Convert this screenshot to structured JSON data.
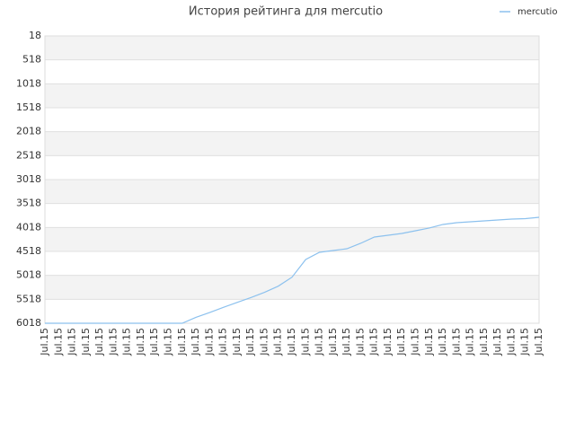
{
  "chart_data": {
    "type": "line",
    "title": "История рейтинга для mercutio",
    "categories": [
      "Jul.15",
      "Jul.15",
      "Jul.15",
      "Jul.15",
      "Jul.15",
      "Jul.15",
      "Jul.15",
      "Jul.15",
      "Jul.15",
      "Jul.15",
      "Jul.15",
      "Jul.15",
      "Jul.15",
      "Jul.15",
      "Jul.15",
      "Jul.15",
      "Jul.15",
      "Jul.15",
      "Jul.15",
      "Jul.15",
      "Jul.15",
      "Jul.15",
      "Jul.15",
      "Jul.15",
      "Jul.15",
      "Jul.15",
      "Jul.15",
      "Jul.15",
      "Jul.15",
      "Jul.15",
      "Jul.15",
      "Jul.15",
      "Jul.15",
      "Jul.15",
      "Jul.15",
      "Jul.15",
      "Jul.15"
    ],
    "series": [
      {
        "name": "mercutio",
        "color": "#8cc1ee",
        "values": [
          6018,
          6018,
          6018,
          6018,
          6018,
          6018,
          6018,
          6018,
          6018,
          6018,
          6018,
          5896,
          5795,
          5686,
          5584,
          5482,
          5373,
          5243,
          5056,
          4687,
          4537,
          4499,
          4462,
          4349,
          4218,
          4180,
          4143,
          4087,
          4030,
          3955,
          3918,
          3899,
          3880,
          3862,
          3843,
          3834,
          3805
        ]
      }
    ],
    "ylim": [
      6018,
      18
    ],
    "yticks": [
      18,
      518,
      1018,
      1518,
      2018,
      2518,
      3018,
      3518,
      4018,
      4518,
      5018,
      5518,
      6018
    ],
    "grid": true,
    "legend": "top-right"
  }
}
